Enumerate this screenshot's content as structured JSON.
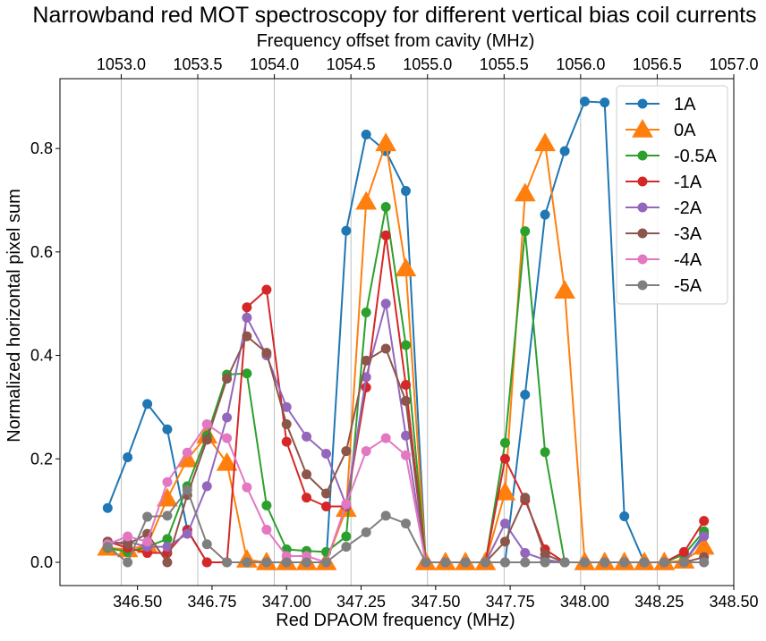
{
  "chart_data": {
    "type": "line",
    "title": "Narrowband red MOT spectroscopy for different vertical bias coil currents",
    "xlabel": "Red DPAOM frequency (MHz)",
    "ylabel": "Normalized horizontal pixel sum",
    "x2label": "Frequency offset from cavity (MHz)",
    "xlim": [
      346.24,
      348.5
    ],
    "ylim": [
      -0.045,
      0.935
    ],
    "x2lim": [
      1052.6,
      1057.0
    ],
    "xticks": [
      "346.50",
      "346.75",
      "347.00",
      "347.25",
      "347.50",
      "347.75",
      "348.00",
      "348.25",
      "348.50"
    ],
    "xtick_values": [
      346.5,
      346.75,
      347.0,
      347.25,
      347.5,
      347.75,
      348.0,
      348.25,
      348.5
    ],
    "yticks": [
      "0.0",
      "0.2",
      "0.4",
      "0.6",
      "0.8"
    ],
    "ytick_values": [
      0,
      0.2,
      0.4,
      0.6,
      0.8
    ],
    "x2ticks": [
      "1053.0",
      "1053.5",
      "1054.0",
      "1054.5",
      "1055.0",
      "1055.5",
      "1056.0",
      "1056.5",
      "1057.0"
    ],
    "x2tick_values": [
      1053.0,
      1053.5,
      1054.0,
      1054.5,
      1055.0,
      1055.5,
      1056.0,
      1056.5,
      1057.0
    ],
    "grid": "vertical lines at top-axis ticks",
    "legend_position": "upper right",
    "x": [
      346.4,
      346.467,
      346.533,
      346.6,
      346.667,
      346.733,
      346.8,
      346.867,
      346.933,
      347.0,
      347.067,
      347.133,
      347.2,
      347.267,
      347.333,
      347.4,
      347.467,
      347.533,
      347.6,
      347.667,
      347.733,
      347.8,
      347.867,
      347.933,
      348.0,
      348.067,
      348.133,
      348.2,
      348.267,
      348.333,
      348.4
    ],
    "series": [
      {
        "name": "1A",
        "color": "#1f77b4",
        "marker": "circle",
        "values": [
          0.105,
          0.203,
          0.306,
          0.257,
          0.063,
          0.0,
          0.0,
          0.0,
          0.0,
          0.0,
          0.0,
          0.0,
          0.641,
          0.827,
          0.795,
          0.718,
          0.0,
          0.0,
          0.0,
          0.0,
          0.0,
          0.324,
          0.672,
          0.795,
          0.891,
          0.889,
          0.089,
          0.0,
          0.0,
          0.0,
          0.055
        ]
      },
      {
        "name": "0A",
        "color": "#ff7f0e",
        "marker": "triangle",
        "values": [
          0.028,
          0.025,
          0.033,
          0.123,
          0.199,
          0.245,
          0.192,
          0.005,
          0.0,
          0.0,
          0.0,
          0.0,
          0.103,
          0.697,
          0.81,
          0.568,
          0.0,
          0.0,
          0.0,
          0.0,
          0.135,
          0.713,
          0.81,
          0.525,
          0.0,
          0.0,
          0.0,
          0.0,
          0.0,
          0.003,
          0.03
        ]
      },
      {
        "name": "-0.5A",
        "color": "#2ca02c",
        "marker": "circle",
        "values": [
          0.028,
          0.02,
          0.03,
          0.045,
          0.147,
          0.245,
          0.363,
          0.365,
          0.11,
          0.025,
          0.022,
          0.02,
          0.05,
          0.483,
          0.687,
          0.42,
          0.0,
          0.0,
          0.0,
          0.0,
          0.231,
          0.64,
          0.213,
          0.0,
          0.0,
          0.0,
          0.0,
          0.0,
          0.0,
          0.015,
          0.06
        ]
      },
      {
        "name": "-1A",
        "color": "#d62728",
        "marker": "circle",
        "values": [
          0.04,
          0.028,
          0.018,
          0.018,
          0.062,
          0.0,
          0.0,
          0.493,
          0.527,
          0.233,
          0.125,
          0.108,
          0.108,
          0.338,
          0.632,
          0.343,
          0.0,
          0.0,
          0.0,
          0.0,
          0.2,
          0.12,
          0.025,
          0.0,
          0.0,
          0.0,
          0.0,
          0.0,
          0.0,
          0.02,
          0.08
        ]
      },
      {
        "name": "-2A",
        "color": "#9467bd",
        "marker": "circle",
        "values": [
          0.035,
          0.04,
          0.03,
          0.03,
          0.055,
          0.147,
          0.28,
          0.473,
          0.4,
          0.3,
          0.243,
          0.21,
          0.11,
          0.358,
          0.5,
          0.245,
          0.0,
          0.0,
          0.0,
          0.0,
          0.075,
          0.018,
          0.005,
          0.0,
          0.0,
          0.0,
          0.0,
          0.0,
          0.0,
          0.0,
          0.05
        ]
      },
      {
        "name": "-3A",
        "color": "#8c564b",
        "marker": "circle",
        "values": [
          0.04,
          0.035,
          0.055,
          0.0,
          0.13,
          0.237,
          0.355,
          0.437,
          0.405,
          0.267,
          0.17,
          0.133,
          0.215,
          0.39,
          0.413,
          0.312,
          0.0,
          0.0,
          0.0,
          0.0,
          0.04,
          0.125,
          0.015,
          0.0,
          0.0,
          0.0,
          0.0,
          0.0,
          0.0,
          0.0,
          0.01
        ]
      },
      {
        "name": "-4A",
        "color": "#e377c2",
        "marker": "circle",
        "values": [
          0.035,
          0.05,
          0.04,
          0.155,
          0.212,
          0.267,
          0.24,
          0.145,
          0.063,
          0.012,
          0.012,
          0.0,
          0.113,
          0.215,
          0.24,
          0.207,
          0.0,
          0.0,
          0.0,
          0.0,
          0.0,
          0.0,
          0.0,
          0.0,
          0.0,
          0.0,
          0.0,
          0.0,
          0.0,
          0.0,
          0.0
        ]
      },
      {
        "name": "-5A",
        "color": "#7f7f7f",
        "marker": "circle",
        "values": [
          0.03,
          0.0,
          0.088,
          0.09,
          0.14,
          0.035,
          0.0,
          0.0,
          0.0,
          0.0,
          0.0,
          0.0,
          0.03,
          0.058,
          0.09,
          0.075,
          0.0,
          0.0,
          0.0,
          0.0,
          0.0,
          0.0,
          0.0,
          0.0,
          0.0,
          0.0,
          0.0,
          0.0,
          0.0,
          0.0,
          0.0
        ]
      }
    ]
  }
}
